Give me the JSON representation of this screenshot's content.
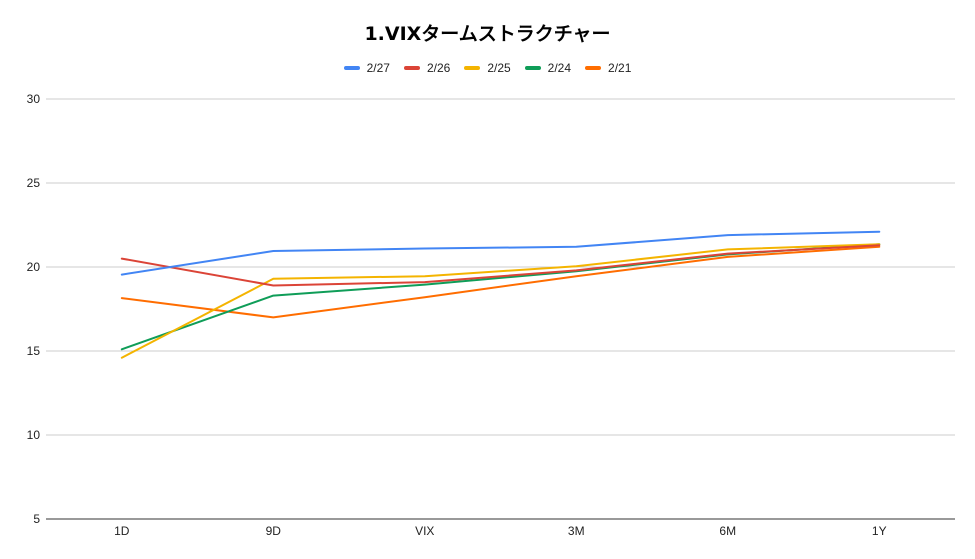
{
  "chart_data": {
    "type": "line",
    "title": "1.VIXタームストラクチャー",
    "xlabel": "",
    "ylabel": "",
    "categories": [
      "1D",
      "9D",
      "VIX",
      "3M",
      "6M",
      "1Y"
    ],
    "ylim": [
      5,
      30
    ],
    "yticks": [
      5,
      10,
      15,
      20,
      25,
      30
    ],
    "grid": true,
    "legend_position": "top",
    "series": [
      {
        "name": "2/27",
        "color": "#4285F4",
        "values": [
          19.55,
          20.95,
          21.1,
          21.2,
          21.9,
          22.1
        ]
      },
      {
        "name": "2/26",
        "color": "#DB4437",
        "values": [
          20.5,
          18.9,
          19.1,
          19.8,
          20.8,
          21.3
        ]
      },
      {
        "name": "2/25",
        "color": "#F4B400",
        "values": [
          14.6,
          19.3,
          19.45,
          20.05,
          21.05,
          21.35
        ]
      },
      {
        "name": "2/24",
        "color": "#0F9D58",
        "values": [
          15.1,
          18.3,
          18.95,
          19.75,
          20.75,
          21.35
        ]
      },
      {
        "name": "2/21",
        "color": "#FF6D00",
        "values": [
          18.15,
          17.0,
          18.2,
          19.45,
          20.6,
          21.2
        ]
      }
    ]
  }
}
